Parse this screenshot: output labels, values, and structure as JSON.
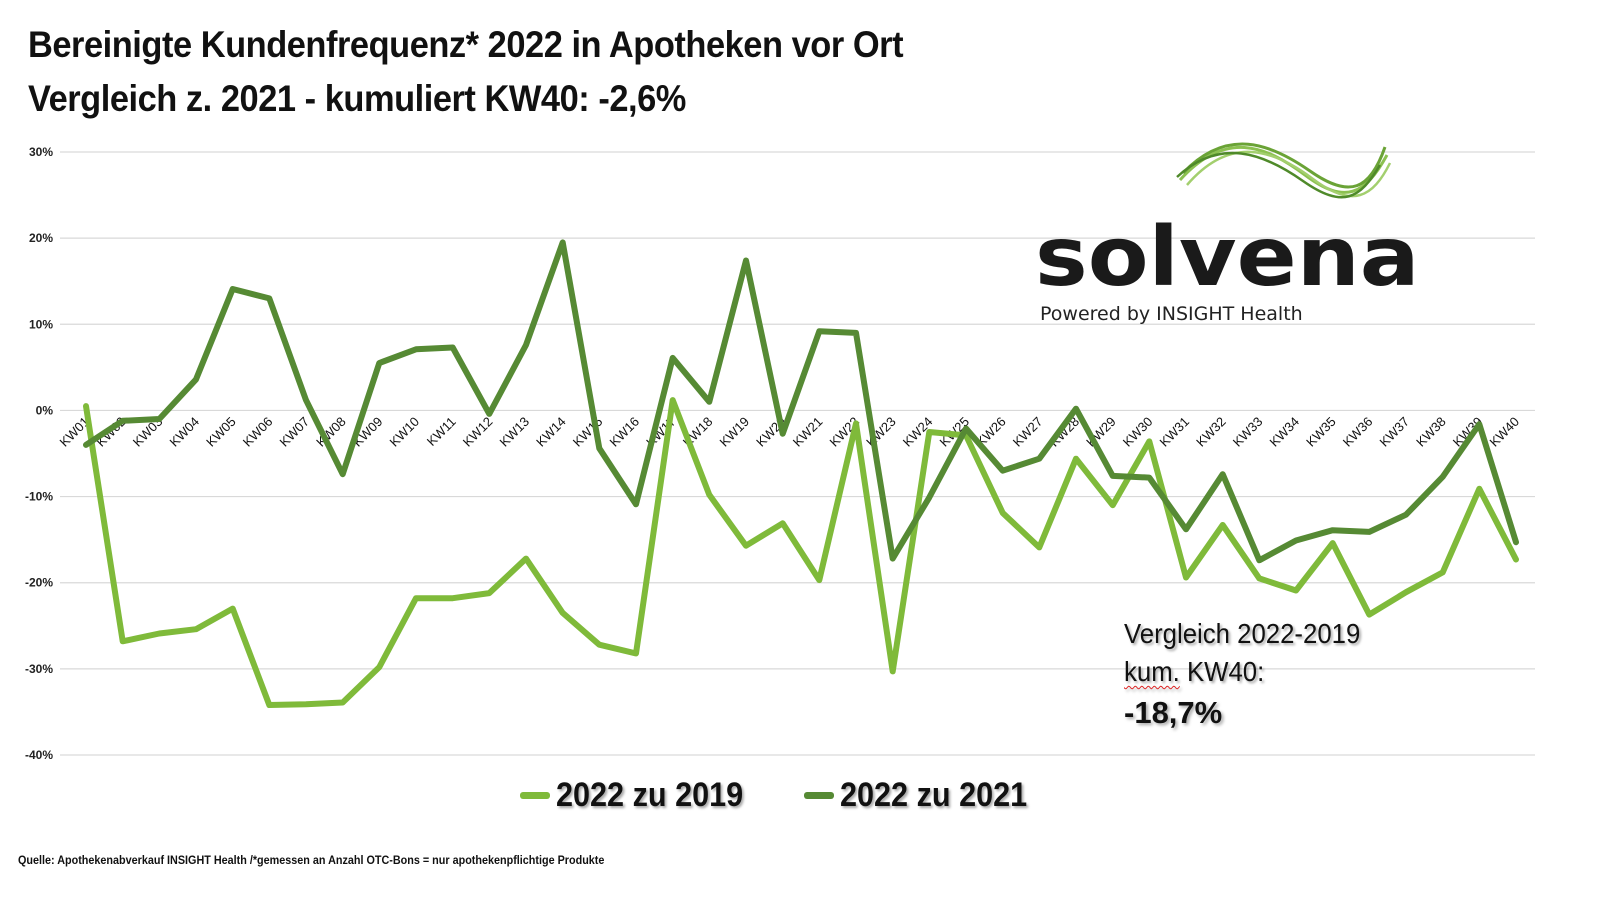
{
  "title": {
    "line1": "Bereinigte Kundenfrequenz* 2022 in Apotheken vor Ort",
    "line2": "Vergleich z. 2021 - kumuliert KW40: -2,6%"
  },
  "logo": {
    "wordmark": "solvena",
    "tagline": "Powered by INSIGHT Health",
    "icon": "wave-lines-icon"
  },
  "annotation": {
    "line1": "Vergleich 2022-2019",
    "line2_word": "kum.",
    "line2_rest": " KW40:",
    "value": "-18,7%"
  },
  "source": "Quelle: Apothekenabverkauf INSIGHT Health /*gemessen an Anzahl OTC-Bons = nur apothekenpflichtige Produkte",
  "colors": {
    "series_2019": "#7fba3a",
    "series_2021": "#568a34",
    "gridline": "#d9d9d9"
  },
  "chart_data": {
    "type": "line",
    "title": "Bereinigte Kundenfrequenz* 2022 in Apotheken vor Ort",
    "subtitle": "Vergleich z. 2021 - kumuliert KW40: -2,6%",
    "xlabel": "",
    "ylabel": "",
    "ylim": [
      -40,
      30
    ],
    "yticks": [
      30,
      20,
      10,
      0,
      -10,
      -20,
      -30,
      -40
    ],
    "ytick_labels": [
      "30%",
      "20%",
      "10%",
      "0%",
      "-10%",
      "-20%",
      "-30%",
      "-40%"
    ],
    "grid": true,
    "legend_position": "bottom",
    "categories": [
      "KW01",
      "KW02",
      "KW03",
      "KW04",
      "KW05",
      "KW06",
      "KW07",
      "KW08",
      "KW09",
      "KW10",
      "KW11",
      "KW12",
      "KW13",
      "KW14",
      "KW15",
      "KW16",
      "KW17",
      "KW18",
      "KW19",
      "KW20",
      "KW21",
      "KW22",
      "KW23",
      "KW24",
      "KW25",
      "KW26",
      "KW27",
      "KW28",
      "KW29",
      "KW30",
      "KW31",
      "KW32",
      "KW33",
      "KW34",
      "KW35",
      "KW36",
      "KW37",
      "KW38",
      "KW39",
      "KW40"
    ],
    "series": [
      {
        "name": "2022 zu 2019",
        "color": "#7fba3a",
        "values": [
          0.5,
          -26.8,
          -25.9,
          -25.4,
          -23.0,
          -34.2,
          -34.1,
          -33.9,
          -29.8,
          -21.8,
          -21.8,
          -21.2,
          -17.2,
          -23.5,
          -27.2,
          -28.2,
          1.2,
          -9.8,
          -15.7,
          -13.1,
          -19.7,
          -1.5,
          -30.3,
          -2.5,
          -2.9,
          -11.9,
          -15.9,
          -5.6,
          -11.0,
          -3.6,
          -19.4,
          -13.3,
          -19.5,
          -20.9,
          -15.4,
          -23.7,
          -21.1,
          -18.8,
          -9.1,
          -17.3
        ]
      },
      {
        "name": "2022 zu 2021",
        "color": "#568a34",
        "values": [
          -4.0,
          -1.2,
          -1.0,
          3.6,
          14.1,
          13.0,
          1.2,
          -7.4,
          5.5,
          7.1,
          7.3,
          -0.4,
          7.6,
          19.5,
          -4.4,
          -10.9,
          6.1,
          1.0,
          17.4,
          -2.7,
          9.2,
          9.0,
          -17.2,
          -10.1,
          -2.1,
          -7.0,
          -5.6,
          0.2,
          -7.6,
          -7.8,
          -13.8,
          -7.4,
          -17.4,
          -15.1,
          -13.9,
          -14.1,
          -12.1,
          -7.7,
          -1.6,
          -15.3
        ]
      }
    ],
    "annotations": [
      "Vergleich 2022-2019 kum. KW40: -18,7%"
    ]
  }
}
